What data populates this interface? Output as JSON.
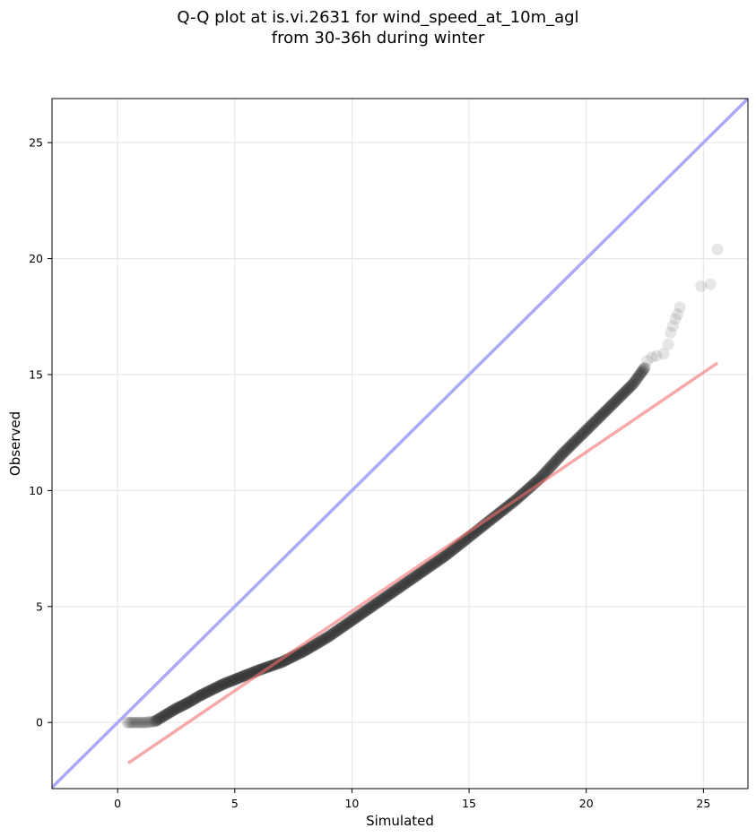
{
  "chart_data": {
    "type": "scatter",
    "title_lines": [
      "Q-Q plot at is.vi.2631 for wind_speed_at_10m_agl",
      "from 30-36h during winter"
    ],
    "xlabel": "Simulated",
    "ylabel": "Observed",
    "xlim": [
      -2.8,
      26.9
    ],
    "ylim": [
      -2.85,
      26.9
    ],
    "xticks": [
      0,
      5,
      10,
      15,
      20,
      25
    ],
    "yticks": [
      0,
      5,
      10,
      15,
      20,
      25
    ],
    "grid": true,
    "colors": {
      "points": "#333333",
      "identity_line": "#aaaaf5",
      "fit_line": "#f5aaaa"
    },
    "identity_line": {
      "x": [
        -2.8,
        26.9
      ],
      "y": [
        -2.8,
        26.9
      ]
    },
    "fit_line": {
      "x": [
        0.45,
        25.6
      ],
      "y": [
        -1.75,
        15.5
      ]
    },
    "quantile_curve_knots": {
      "x": [
        0.4,
        0.8,
        1.2,
        1.6,
        2.0,
        2.5,
        3.0,
        3.5,
        4.0,
        4.5,
        5.0,
        5.5,
        6.0,
        7.0,
        8.0,
        9.0,
        10.0,
        11.0,
        12.0,
        13.0,
        14.0,
        15.0,
        16.0,
        17.0,
        18.0,
        19.0,
        20.0,
        21.0,
        22.0,
        22.5
      ],
      "y": [
        0.0,
        0.0,
        0.0,
        0.05,
        0.3,
        0.6,
        0.85,
        1.15,
        1.4,
        1.65,
        1.85,
        2.05,
        2.25,
        2.6,
        3.1,
        3.7,
        4.4,
        5.1,
        5.8,
        6.5,
        7.2,
        8.0,
        8.8,
        9.6,
        10.5,
        11.6,
        12.6,
        13.6,
        14.6,
        15.3
      ]
    },
    "tail_points": {
      "x": [
        22.6,
        22.8,
        23.0,
        23.3,
        23.5,
        23.6,
        23.7,
        23.8,
        23.9,
        24.0,
        24.9,
        25.3,
        25.6
      ],
      "y": [
        15.6,
        15.75,
        15.8,
        15.9,
        16.3,
        16.8,
        17.1,
        17.4,
        17.6,
        17.9,
        18.8,
        18.9,
        20.4
      ]
    }
  }
}
